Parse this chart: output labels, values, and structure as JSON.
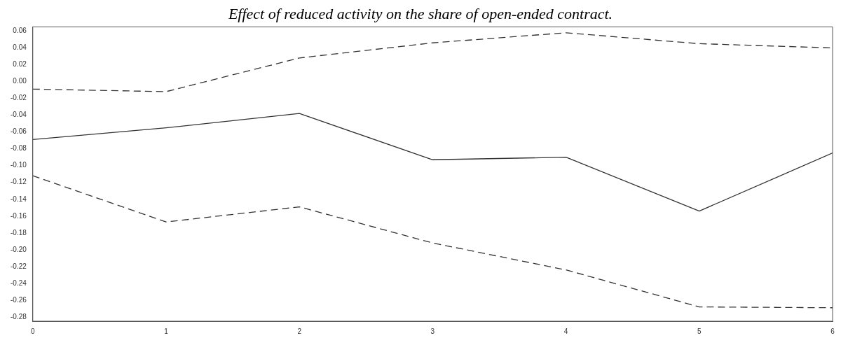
{
  "chart_data": {
    "type": "line",
    "title": "Effect of reduced activity on the share of open-ended contract.",
    "x": [
      0,
      1,
      2,
      3,
      4,
      5,
      6
    ],
    "series": [
      {
        "color": "#333333",
        "line_style": "dashed",
        "values": [
          -0.009,
          -0.012,
          0.028,
          0.046,
          0.058,
          0.045,
          0.04
        ]
      },
      {
        "color": "#333333",
        "line_style": "solid",
        "values": [
          -0.069,
          -0.055,
          -0.038,
          -0.093,
          -0.09,
          -0.154,
          -0.085
        ]
      },
      {
        "color": "#333333",
        "line_style": "dashed",
        "values": [
          -0.112,
          -0.167,
          -0.149,
          -0.192,
          -0.224,
          -0.268,
          -0.269
        ]
      }
    ],
    "xlim": [
      0,
      6
    ],
    "xticks": [
      0,
      1,
      2,
      3,
      4,
      5,
      6
    ],
    "ylim": [
      -0.285,
      0.065
    ],
    "yticks": [
      {
        "value": 0.06,
        "label": "0.06"
      },
      {
        "value": 0.04,
        "label": "0.04"
      },
      {
        "value": 0.02,
        "label": "0.02"
      },
      {
        "value": 0,
        "label": "0.00"
      },
      {
        "value": -0.02,
        "label": "-0.02"
      },
      {
        "value": -0.04,
        "label": "-0.04"
      },
      {
        "value": -0.06,
        "label": "-0.06"
      },
      {
        "value": -0.08,
        "label": "-0.08"
      },
      {
        "value": -0.1,
        "label": "-0.10"
      },
      {
        "value": -0.12,
        "label": "-0.12"
      },
      {
        "value": -0.14,
        "label": "-0.14"
      },
      {
        "value": -0.16,
        "label": "-0.16"
      },
      {
        "value": -0.18,
        "label": "-0.18"
      },
      {
        "value": -0.2,
        "label": "-0.20"
      },
      {
        "value": -0.22,
        "label": "-0.22"
      },
      {
        "value": -0.24,
        "label": "-0.24"
      },
      {
        "value": -0.26,
        "label": "-0.26"
      },
      {
        "value": -0.28,
        "label": "-0.28"
      }
    ],
    "grid": false,
    "legend": false,
    "marker": "none"
  }
}
